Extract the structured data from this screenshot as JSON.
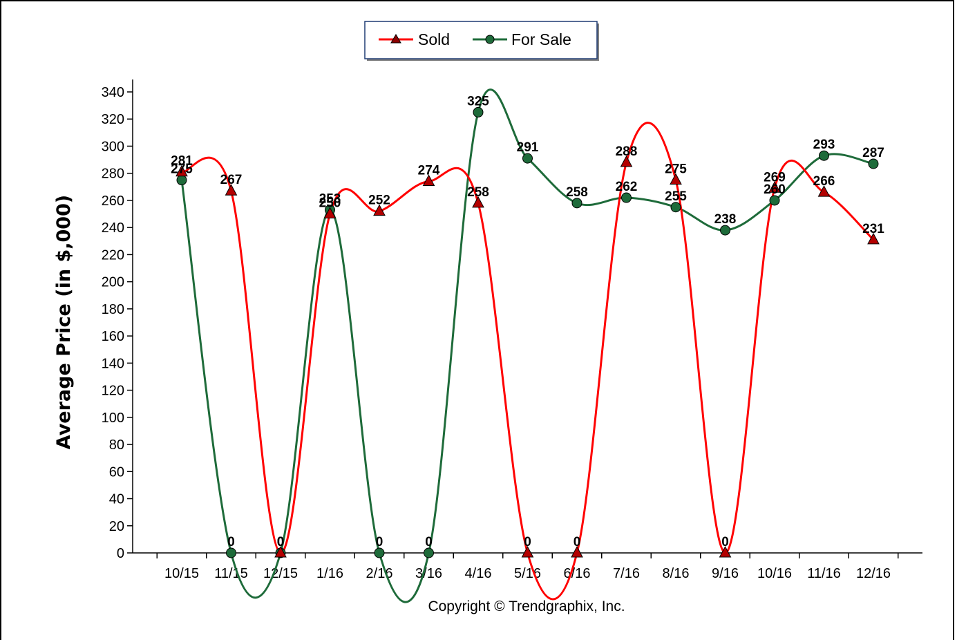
{
  "chart_data": {
    "type": "line",
    "categories": [
      "10/15",
      "11/15",
      "12/15",
      "1/16",
      "2/16",
      "3/16",
      "4/16",
      "5/16",
      "6/16",
      "7/16",
      "8/16",
      "9/16",
      "10/16",
      "11/16",
      "12/16"
    ],
    "series": [
      {
        "name": "Sold",
        "color": "#ff0000",
        "marker": "triangle",
        "values": [
          281,
          267,
          0,
          250,
          252,
          274,
          258,
          0,
          0,
          288,
          275,
          0,
          269,
          266,
          231
        ]
      },
      {
        "name": "For Sale",
        "color": "#1e6b3a",
        "marker": "circle",
        "values": [
          275,
          0,
          0,
          253,
          0,
          0,
          325,
          291,
          258,
          262,
          255,
          238,
          260,
          293,
          287
        ]
      }
    ],
    "title": "",
    "xlabel": "",
    "ylabel": "Average Price (in $,000)",
    "ylim": [
      0,
      340
    ],
    "yticks": [
      0,
      20,
      40,
      60,
      80,
      100,
      120,
      140,
      160,
      180,
      200,
      220,
      240,
      260,
      280,
      300,
      320,
      340
    ],
    "grid": false,
    "legend": "top-center",
    "smooth": true
  },
  "footer": {
    "copyright": "Copyright © Trendgraphix, Inc."
  }
}
